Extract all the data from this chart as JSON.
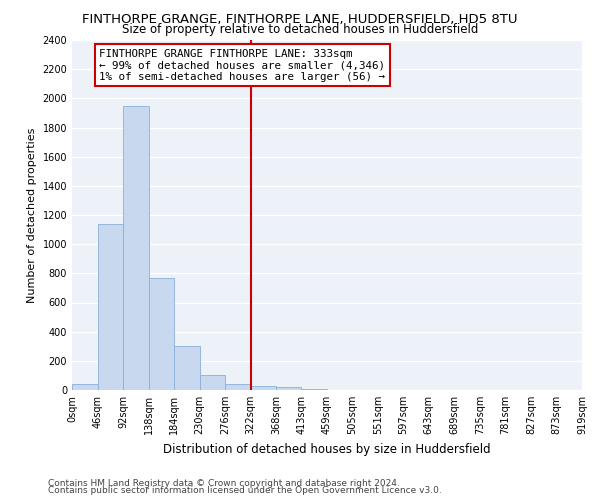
{
  "title": "FINTHORPE GRANGE, FINTHORPE LANE, HUDDERSFIELD, HD5 8TU",
  "subtitle": "Size of property relative to detached houses in Huddersfield",
  "xlabel": "Distribution of detached houses by size in Huddersfield",
  "ylabel": "Number of detached properties",
  "bar_values": [
    40,
    1140,
    1950,
    770,
    300,
    105,
    40,
    30,
    20,
    10,
    0,
    0,
    0,
    0,
    0,
    0,
    0,
    0,
    0,
    0
  ],
  "bin_edges": [
    0,
    46,
    92,
    138,
    184,
    230,
    276,
    322,
    368,
    413,
    459,
    505,
    551,
    597,
    643,
    689,
    735,
    781,
    827,
    873,
    919
  ],
  "bar_color": "#c8d8ee",
  "bar_edgecolor": "#8ab0d8",
  "vline_x": 322,
  "vline_color": "#cc0000",
  "annotation_title": "FINTHORPE GRANGE FINTHORPE LANE: 333sqm",
  "annotation_line1": "← 99% of detached houses are smaller (4,346)",
  "annotation_line2": "1% of semi-detached houses are larger (56) →",
  "annotation_box_color": "#cc0000",
  "ylim": [
    0,
    2400
  ],
  "yticks": [
    0,
    200,
    400,
    600,
    800,
    1000,
    1200,
    1400,
    1600,
    1800,
    2000,
    2200,
    2400
  ],
  "footnote1": "Contains HM Land Registry data © Crown copyright and database right 2024.",
  "footnote2": "Contains public sector information licensed under the Open Government Licence v3.0.",
  "bg_color": "#edf2f9",
  "title_fontsize": 9.5,
  "subtitle_fontsize": 8.5,
  "xlabel_fontsize": 8.5,
  "ylabel_fontsize": 8,
  "tick_fontsize": 7,
  "footnote_fontsize": 6.5
}
